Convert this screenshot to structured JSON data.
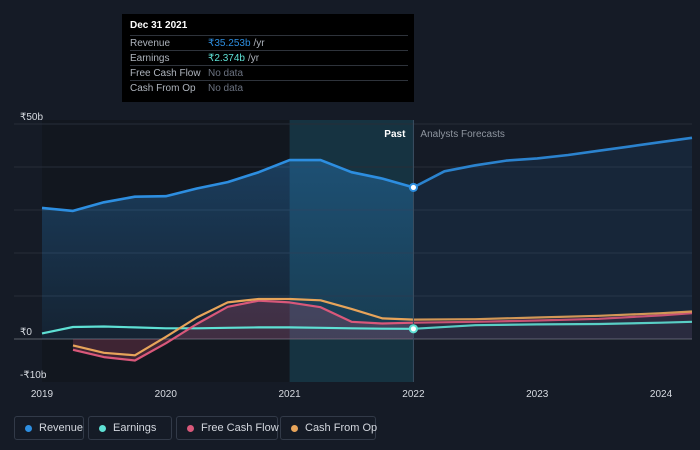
{
  "tooltip": {
    "date": "Dec 31 2021",
    "rows": [
      {
        "label": "Revenue",
        "value": "₹35.253b",
        "unit": "/yr",
        "color": "#2d8ee0"
      },
      {
        "label": "Earnings",
        "value": "₹2.374b",
        "unit": "/yr",
        "color": "#5ee0d4"
      },
      {
        "label": "Free Cash Flow",
        "value": "No data",
        "unit": "",
        "color": "#6b7280"
      },
      {
        "label": "Cash From Op",
        "value": "No data",
        "unit": "",
        "color": "#6b7280"
      }
    ]
  },
  "legend": [
    {
      "label": "Revenue",
      "color": "#2d8ee0"
    },
    {
      "label": "Earnings",
      "color": "#5ee0d4"
    },
    {
      "label": "Free Cash Flow",
      "color": "#d9587a"
    },
    {
      "label": "Cash From Op",
      "color": "#e7a45a"
    }
  ],
  "chart_data": {
    "type": "line",
    "title": "",
    "xlabel": "",
    "ylabel": "",
    "y_unit": "₹b",
    "ylim": [
      -10,
      50
    ],
    "xlim": [
      2019,
      2024.25
    ],
    "y_tick_labels": [
      {
        "value": 50,
        "label": "₹50b"
      },
      {
        "value": 0,
        "label": "₹0"
      },
      {
        "value": -10,
        "label": "-₹10b"
      }
    ],
    "x_tick_labels": [
      {
        "value": 2019,
        "label": "2019"
      },
      {
        "value": 2020,
        "label": "2020"
      },
      {
        "value": 2021,
        "label": "2021"
      },
      {
        "value": 2022,
        "label": "2022"
      },
      {
        "value": 2023,
        "label": "2023"
      },
      {
        "value": 2024,
        "label": "2024"
      }
    ],
    "divider_x": 2022.0,
    "past_label": "Past",
    "forecast_label": "Analysts Forecasts",
    "highlight_band": [
      2021.0,
      2022.0
    ],
    "grid": true,
    "legend_position": "bottom",
    "series": [
      {
        "name": "Revenue",
        "color": "#2d8ee0",
        "fill": true,
        "points": [
          [
            2019.0,
            30.5
          ],
          [
            2019.25,
            29.8
          ],
          [
            2019.5,
            31.8
          ],
          [
            2019.75,
            33.1
          ],
          [
            2020.0,
            33.2
          ],
          [
            2020.25,
            35.0
          ],
          [
            2020.5,
            36.5
          ],
          [
            2020.75,
            38.8
          ],
          [
            2021.0,
            41.6
          ],
          [
            2021.25,
            41.6
          ],
          [
            2021.5,
            38.8
          ],
          [
            2021.75,
            37.3
          ],
          [
            2022.0,
            35.25
          ]
        ],
        "forecast": [
          [
            2022.0,
            35.25
          ],
          [
            2022.25,
            39.0
          ],
          [
            2022.5,
            40.4
          ],
          [
            2022.75,
            41.5
          ],
          [
            2023.0,
            42.0
          ],
          [
            2023.25,
            42.8
          ],
          [
            2023.5,
            43.8
          ],
          [
            2023.75,
            44.8
          ],
          [
            2024.0,
            45.8
          ],
          [
            2024.25,
            46.8
          ]
        ]
      },
      {
        "name": "Earnings",
        "color": "#5ee0d4",
        "fill": false,
        "points": [
          [
            2019.0,
            1.3
          ],
          [
            2019.25,
            2.8
          ],
          [
            2019.5,
            2.9
          ],
          [
            2019.75,
            2.7
          ],
          [
            2020.0,
            2.5
          ],
          [
            2020.25,
            2.5
          ],
          [
            2020.5,
            2.6
          ],
          [
            2020.75,
            2.7
          ],
          [
            2021.0,
            2.7
          ],
          [
            2021.25,
            2.6
          ],
          [
            2021.5,
            2.5
          ],
          [
            2021.75,
            2.4
          ],
          [
            2022.0,
            2.374
          ]
        ],
        "forecast": [
          [
            2022.0,
            2.374
          ],
          [
            2022.5,
            3.2
          ],
          [
            2023.0,
            3.4
          ],
          [
            2023.5,
            3.5
          ],
          [
            2024.0,
            3.8
          ],
          [
            2024.25,
            4.0
          ]
        ]
      },
      {
        "name": "Free Cash Flow",
        "color": "#d9587a",
        "fill": true,
        "points": [
          [
            2019.25,
            -2.5
          ],
          [
            2019.5,
            -4.2
          ],
          [
            2019.75,
            -5.0
          ],
          [
            2020.0,
            -1.0
          ],
          [
            2020.25,
            3.5
          ],
          [
            2020.5,
            7.5
          ],
          [
            2020.75,
            8.9
          ],
          [
            2021.0,
            8.5
          ],
          [
            2021.25,
            7.4
          ],
          [
            2021.5,
            4.0
          ],
          [
            2021.75,
            3.6
          ],
          [
            2022.0,
            3.8
          ]
        ],
        "forecast": [
          [
            2022.0,
            3.8
          ],
          [
            2022.5,
            4.0
          ],
          [
            2023.0,
            4.3
          ],
          [
            2023.5,
            4.7
          ],
          [
            2024.0,
            5.5
          ],
          [
            2024.25,
            6.0
          ]
        ]
      },
      {
        "name": "Cash From Op",
        "color": "#e7a45a",
        "fill": false,
        "points": [
          [
            2019.25,
            -1.5
          ],
          [
            2019.5,
            -3.2
          ],
          [
            2019.75,
            -3.8
          ],
          [
            2020.0,
            0.5
          ],
          [
            2020.25,
            5.0
          ],
          [
            2020.5,
            8.5
          ],
          [
            2020.75,
            9.3
          ],
          [
            2021.0,
            9.3
          ],
          [
            2021.25,
            9.0
          ],
          [
            2021.5,
            7.0
          ],
          [
            2021.75,
            4.8
          ],
          [
            2022.0,
            4.5
          ]
        ],
        "forecast": [
          [
            2022.0,
            4.5
          ],
          [
            2022.5,
            4.6
          ],
          [
            2023.0,
            5.0
          ],
          [
            2023.5,
            5.4
          ],
          [
            2024.0,
            6.0
          ],
          [
            2024.25,
            6.4
          ]
        ]
      }
    ]
  }
}
